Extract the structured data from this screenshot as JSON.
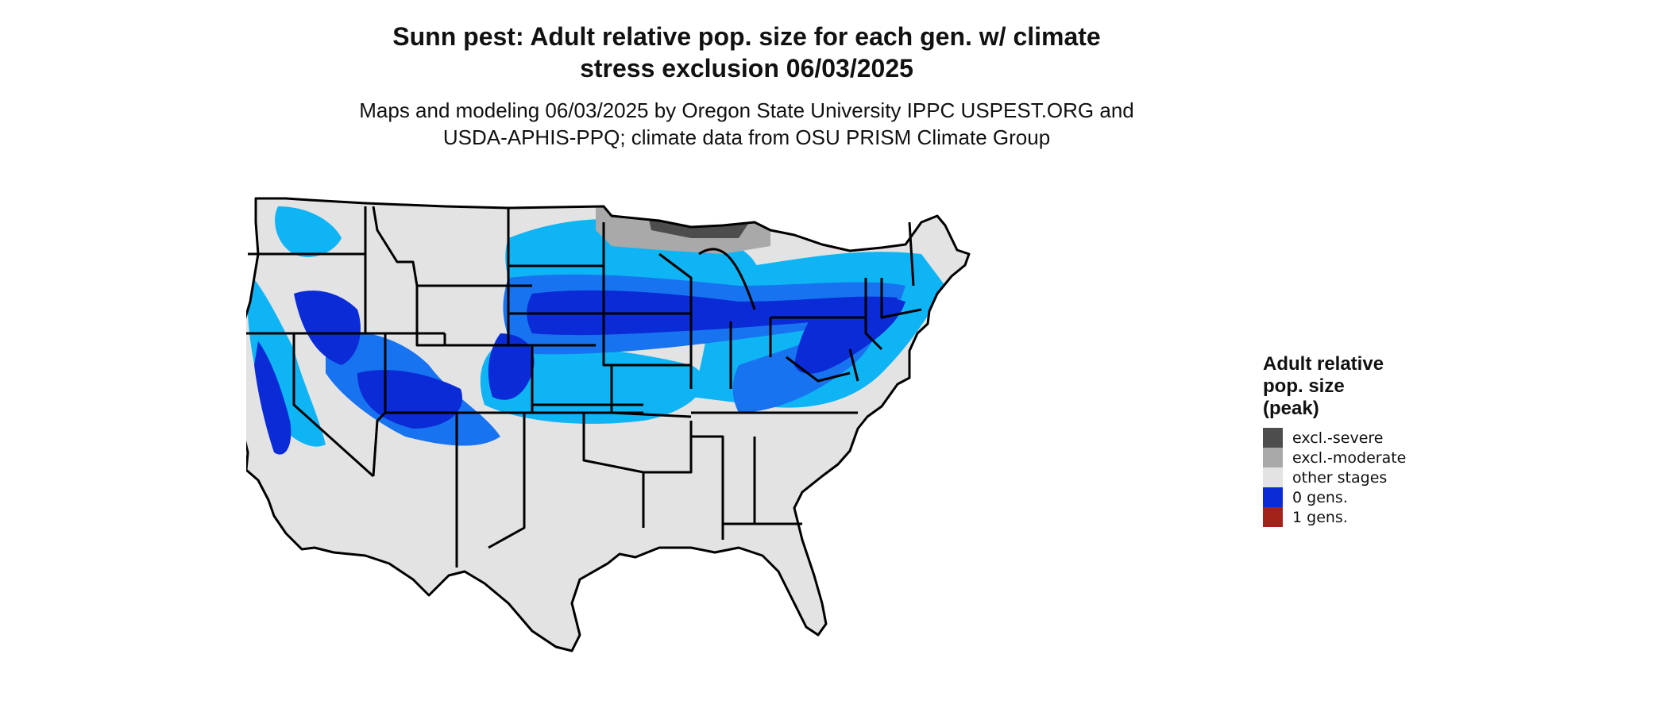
{
  "header": {
    "title_line1": "Sunn pest: Adult relative pop. size for each gen. w/ climate",
    "title_line2": "stress exclusion 06/03/2025",
    "subtitle_line1": "Maps and modeling 06/03/2025 by Oregon State University IPPC USPEST.ORG and",
    "subtitle_line2": "USDA-APHIS-PPQ; climate data from OSU PRISM Climate Group"
  },
  "legend": {
    "title": "Adult relative\npop. size\n(peak)",
    "items": [
      {
        "label": "excl.-severe",
        "color": "#4d4d4d"
      },
      {
        "label": "excl.-moderate",
        "color": "#a9a9a9"
      },
      {
        "label": "other stages",
        "color": "#e3e3e3"
      },
      {
        "label": "0 gens.",
        "color": "#0a2bd6"
      },
      {
        "label": "1 gens.",
        "color": "#a3231a"
      }
    ]
  },
  "map_colors": {
    "base": "#e3e3e3",
    "light_blue": "#0fb4f5",
    "mid_blue": "#1773ef",
    "dark_blue": "#0a2bd6",
    "border": "#000000"
  }
}
